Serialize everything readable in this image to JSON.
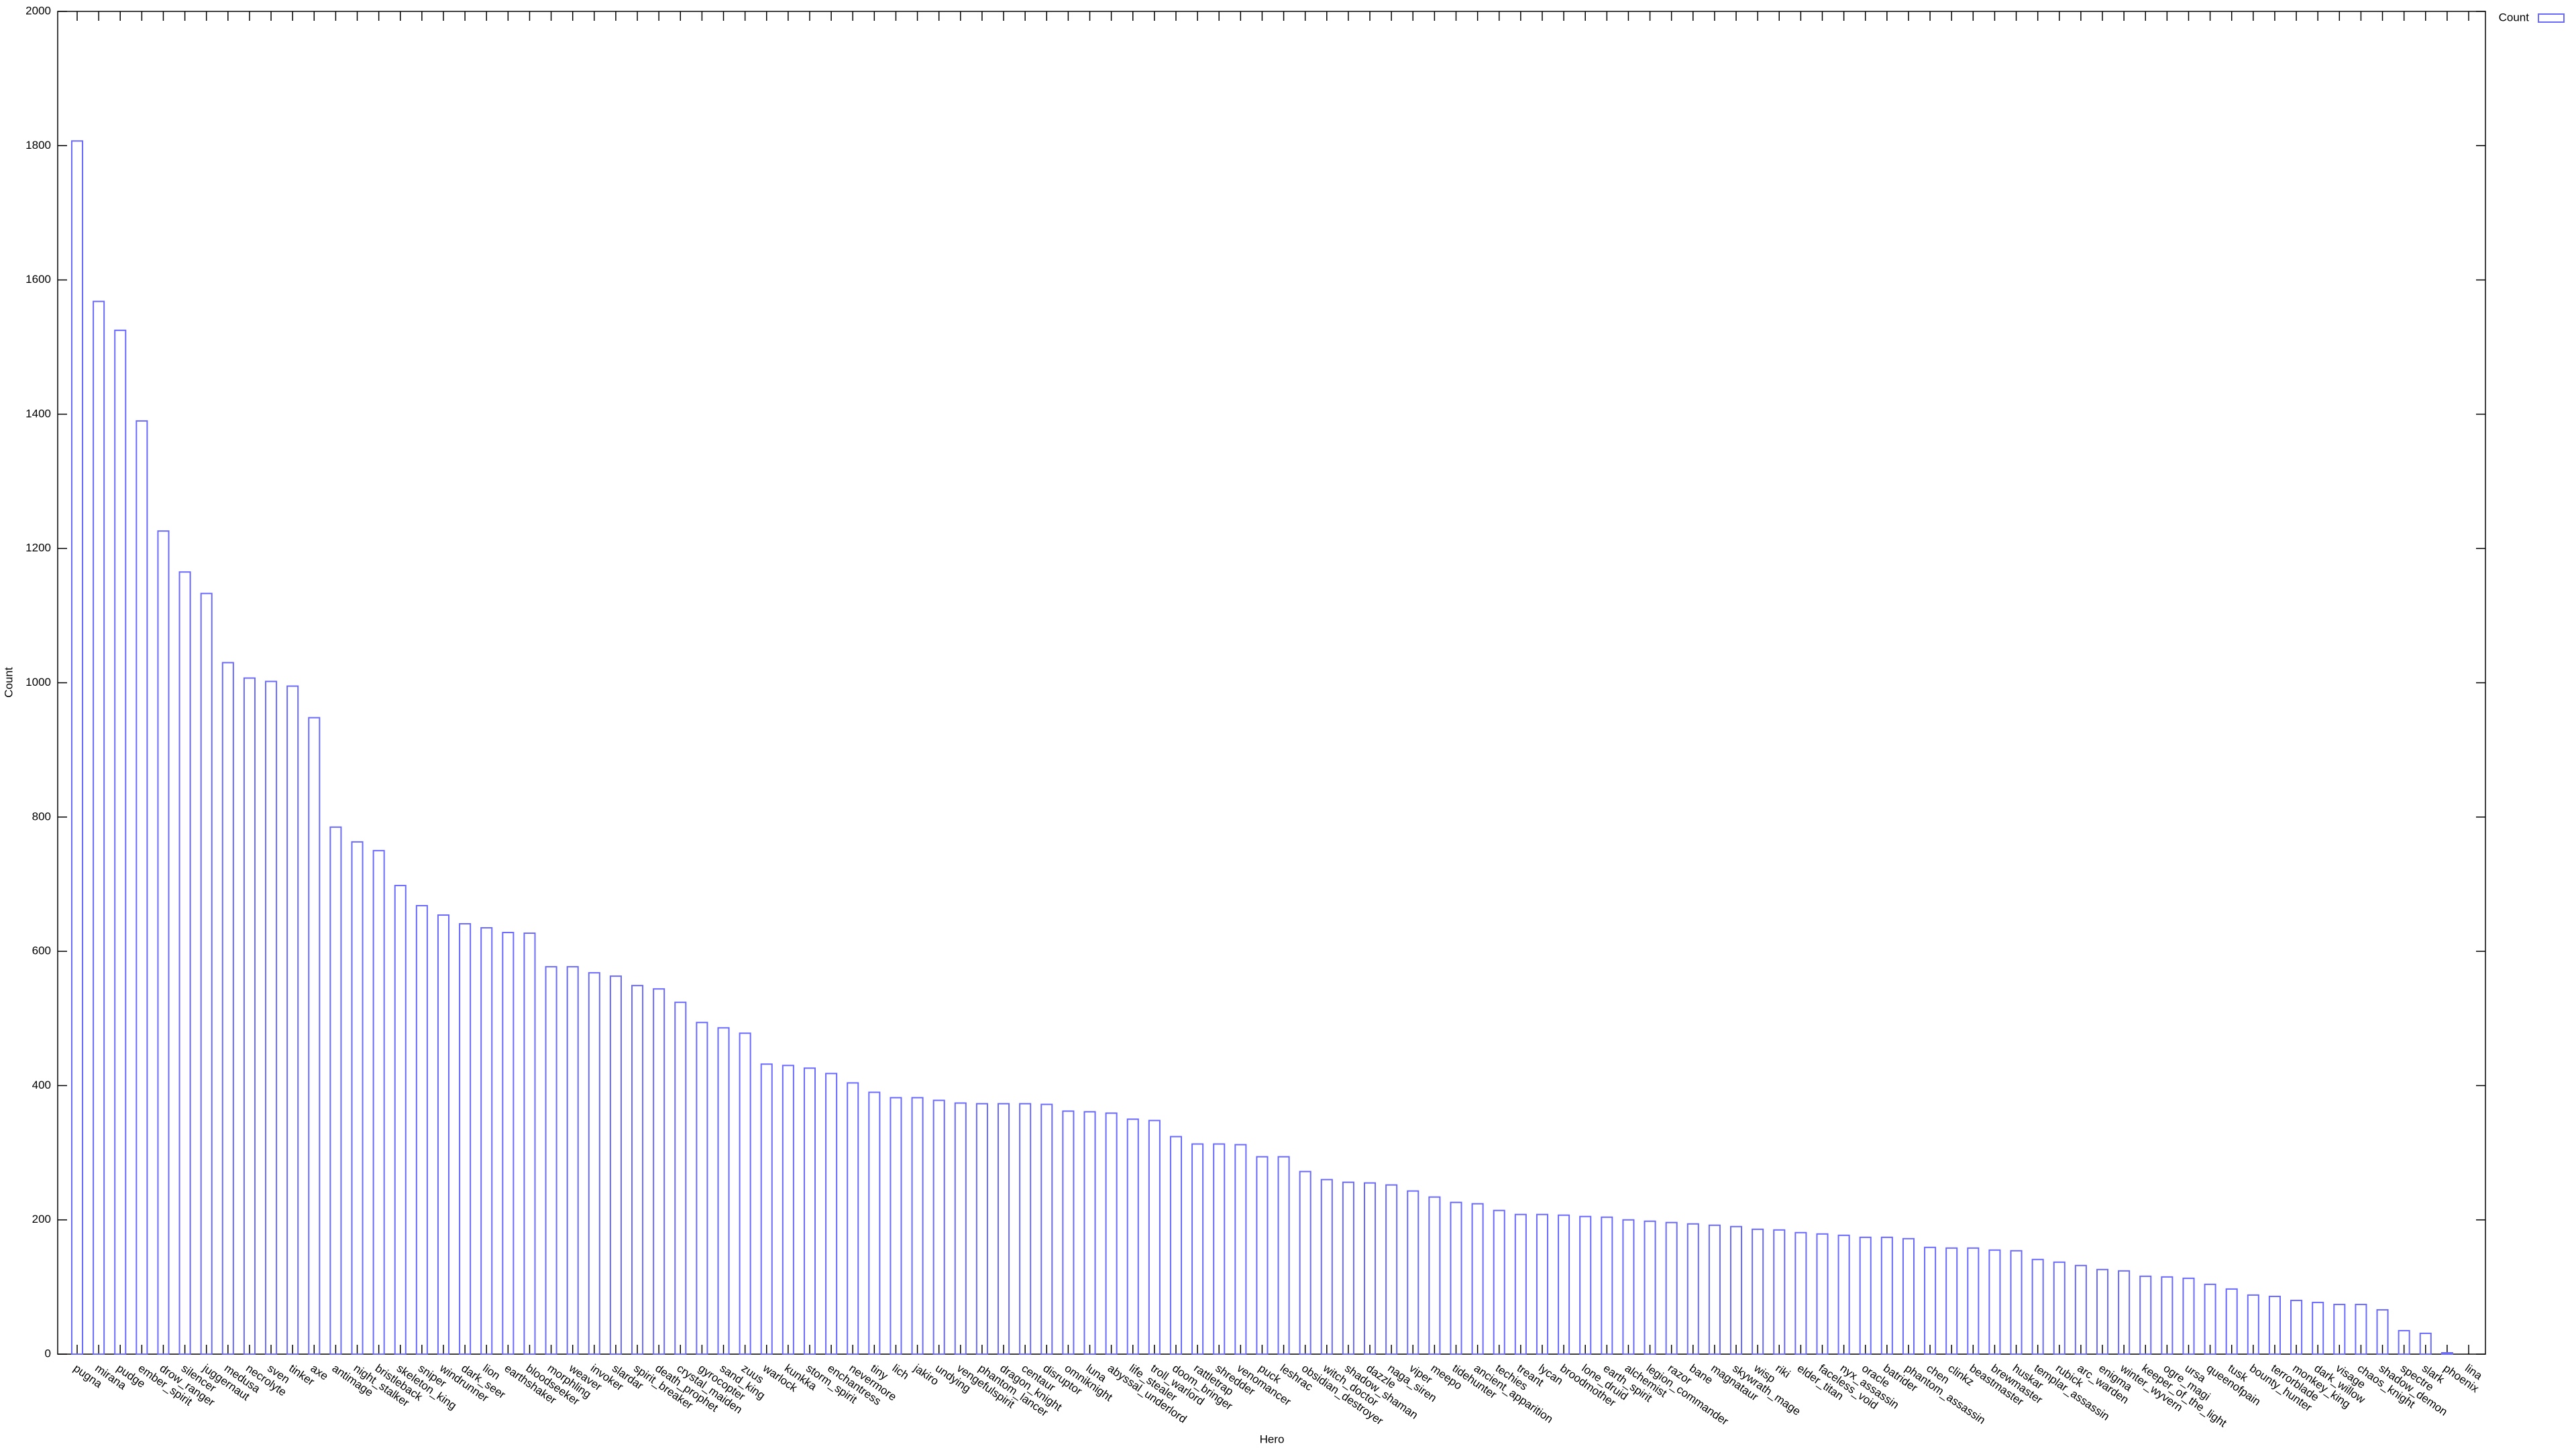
{
  "chart_data": {
    "type": "bar",
    "x_label": "Hero",
    "y_label": "Count",
    "categories": [
      "pugna",
      "mirana",
      "pudge",
      "ember_spirit",
      "drow_ranger",
      "silencer",
      "juggernaut",
      "medusa",
      "necrolyte",
      "sven",
      "tinker",
      "axe",
      "antimage",
      "night_stalker",
      "bristleback",
      "skeleton_king",
      "sniper",
      "windrunner",
      "dark_seer",
      "lion",
      "earthshaker",
      "bloodseeker",
      "morphling",
      "weaver",
      "invoker",
      "slardar",
      "spirit_breaker",
      "death_prophet",
      "crystal_maiden",
      "gyrocopter",
      "sand_king",
      "zuus",
      "warlock",
      "kunkka",
      "storm_spirit",
      "enchantress",
      "nevermore",
      "tiny",
      "lich",
      "jakiro",
      "undying",
      "vengefulspirit",
      "phantom_lancer",
      "dragon_knight",
      "centaur",
      "disruptor",
      "omniknight",
      "luna",
      "abyssal_underlord",
      "life_stealer",
      "troll_warlord",
      "doom_bringer",
      "rattletrap",
      "shredder",
      "venomancer",
      "puck",
      "leshrac",
      "obsidian_destroyer",
      "witch_doctor",
      "shadow_shaman",
      "dazzle",
      "naga_siren",
      "viper",
      "meepo",
      "tidehunter",
      "ancient_apparition",
      "techies",
      "treant",
      "lycan",
      "broodmother",
      "lone_druid",
      "earth_spirit",
      "alchemist",
      "legion_commander",
      "razor",
      "bane",
      "magnataur",
      "skywrath_mage",
      "wisp",
      "riki",
      "elder_titan",
      "faceless_void",
      "nyx_assassin",
      "oracle",
      "batrider",
      "phantom_assassin",
      "chen",
      "clinkz",
      "beastmaster",
      "brewmaster",
      "huskar",
      "templar_assassin",
      "rubick",
      "arc_warden",
      "enigma",
      "winter_wyvern",
      "keeper_of_the_light",
      "ogre_magi",
      "ursa",
      "queenofpain",
      "tusk",
      "bounty_hunter",
      "terrorblade",
      "monkey_king",
      "dark_willow",
      "visage",
      "chaos_knight",
      "shadow_demon",
      "spectre",
      "slark",
      "phoenix",
      "lina"
    ],
    "series": [
      {
        "name": "Count",
        "color": "#6a6aff",
        "values": [
          1807,
          1568,
          1525,
          1390,
          1226,
          1165,
          1133,
          1030,
          1007,
          1002,
          995,
          948,
          785,
          763,
          750,
          698,
          668,
          654,
          641,
          635,
          628,
          627,
          577,
          577,
          568,
          563,
          549,
          544,
          524,
          494,
          486,
          478,
          432,
          430,
          426,
          418,
          404,
          390,
          382,
          382,
          378,
          374,
          373,
          373,
          373,
          372,
          362,
          361,
          359,
          350,
          348,
          324,
          313,
          313,
          312,
          294,
          294,
          272,
          260,
          256,
          255,
          252,
          243,
          234,
          226,
          224,
          214,
          208,
          208,
          207,
          205,
          204,
          200,
          198,
          196,
          194,
          192,
          190,
          186,
          185,
          181,
          179,
          177,
          174,
          174,
          172,
          159,
          158,
          158,
          155,
          154,
          141,
          137,
          132,
          126,
          124,
          116,
          115,
          113,
          104,
          97,
          88,
          86,
          80,
          77,
          74,
          74,
          66,
          35,
          31,
          2,
          0
        ]
      }
    ],
    "ylim": [
      0,
      2000
    ],
    "yticks": [
      0,
      200,
      400,
      600,
      800,
      1000,
      1200,
      1400,
      1600,
      1800,
      2000
    ],
    "legend": "top right"
  }
}
